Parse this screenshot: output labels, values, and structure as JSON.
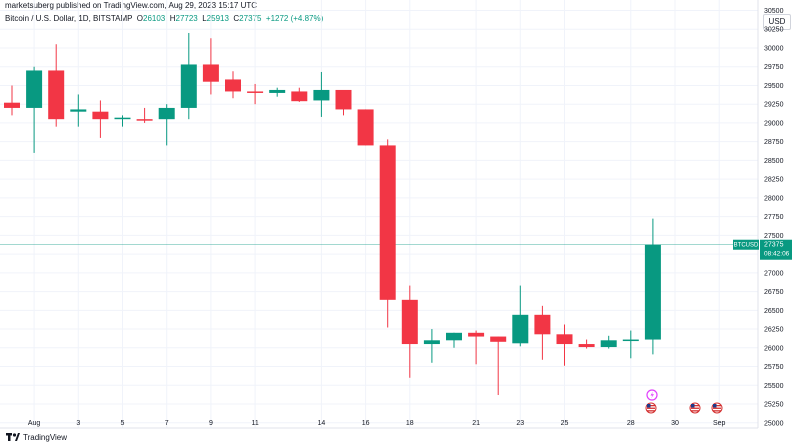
{
  "header": {
    "published": "marketsuberg published on TradingView.com, Aug 29, 2023 15:17 UTC"
  },
  "symbol": {
    "name": "Bitcoin / U.S. Dollar, 1D, BITSTAMP",
    "o_key": "O",
    "o": "26103",
    "h_key": "H",
    "h": "27723",
    "l_key": "L",
    "l": "25913",
    "c_key": "C",
    "c": "27375",
    "change": "+1272 (+4.87%)"
  },
  "currency": "USD",
  "price_tag": {
    "ticker": "BTCUSD",
    "price": "27375",
    "countdown": "08:42:06"
  },
  "footer": {
    "brand": "TradingView"
  },
  "colors": {
    "up": "#089981",
    "down": "#f23645",
    "grid": "#f0f3fa",
    "axis_text": "#131722"
  },
  "chart_data": {
    "type": "candlestick",
    "y_ticks": [
      25000,
      25250,
      25500,
      25750,
      26000,
      26250,
      26500,
      26750,
      27000,
      27250,
      27500,
      27750,
      28000,
      28250,
      28500,
      28750,
      29000,
      29250,
      29500,
      29750,
      30000,
      30250,
      30500
    ],
    "x_ticks": [
      {
        "label": "Aug",
        "index": 1
      },
      {
        "label": "3",
        "index": 3
      },
      {
        "label": "5",
        "index": 5
      },
      {
        "label": "7",
        "index": 7
      },
      {
        "label": "9",
        "index": 9
      },
      {
        "label": "11",
        "index": 11
      },
      {
        "label": "14",
        "index": 14
      },
      {
        "label": "16",
        "index": 16
      },
      {
        "label": "18",
        "index": 18
      },
      {
        "label": "21",
        "index": 21
      },
      {
        "label": "23",
        "index": 23
      },
      {
        "label": "25",
        "index": 25
      },
      {
        "label": "28",
        "index": 28
      },
      {
        "label": "30",
        "index": 30
      },
      {
        "label": "Sep",
        "index": 32
      }
    ],
    "ylim": [
      24930,
      30640
    ],
    "candles": [
      {
        "o": 29270,
        "h": 29500,
        "l": 29100,
        "c": 29200
      },
      {
        "o": 29200,
        "h": 29750,
        "l": 28600,
        "c": 29700
      },
      {
        "o": 29700,
        "h": 30050,
        "l": 28950,
        "c": 29050
      },
      {
        "o": 29150,
        "h": 29380,
        "l": 28950,
        "c": 29180
      },
      {
        "o": 29150,
        "h": 29300,
        "l": 28800,
        "c": 29050
      },
      {
        "o": 29050,
        "h": 29100,
        "l": 28950,
        "c": 29070
      },
      {
        "o": 29050,
        "h": 29200,
        "l": 29000,
        "c": 29030
      },
      {
        "o": 29050,
        "h": 29250,
        "l": 28700,
        "c": 29200
      },
      {
        "o": 29200,
        "h": 30200,
        "l": 29050,
        "c": 29780
      },
      {
        "o": 29780,
        "h": 30130,
        "l": 29380,
        "c": 29550
      },
      {
        "o": 29580,
        "h": 29690,
        "l": 29330,
        "c": 29420
      },
      {
        "o": 29420,
        "h": 29520,
        "l": 29250,
        "c": 29400
      },
      {
        "o": 29400,
        "h": 29470,
        "l": 29350,
        "c": 29440
      },
      {
        "o": 29420,
        "h": 29470,
        "l": 29280,
        "c": 29290
      },
      {
        "o": 29300,
        "h": 29680,
        "l": 29080,
        "c": 29440
      },
      {
        "o": 29440,
        "h": 29440,
        "l": 29100,
        "c": 29180
      },
      {
        "o": 29180,
        "h": 29180,
        "l": 28700,
        "c": 28700
      },
      {
        "o": 28700,
        "h": 28780,
        "l": 26270,
        "c": 26640
      },
      {
        "o": 26640,
        "h": 26830,
        "l": 25600,
        "c": 26050
      },
      {
        "o": 26050,
        "h": 26250,
        "l": 25800,
        "c": 26100
      },
      {
        "o": 26100,
        "h": 26200,
        "l": 26000,
        "c": 26200
      },
      {
        "o": 26200,
        "h": 26230,
        "l": 25780,
        "c": 26150
      },
      {
        "o": 26150,
        "h": 26150,
        "l": 25370,
        "c": 26080
      },
      {
        "o": 26060,
        "h": 26830,
        "l": 26020,
        "c": 26440
      },
      {
        "o": 26440,
        "h": 26560,
        "l": 25840,
        "c": 26180
      },
      {
        "o": 26180,
        "h": 26310,
        "l": 25760,
        "c": 26050
      },
      {
        "o": 26050,
        "h": 26110,
        "l": 25990,
        "c": 26010
      },
      {
        "o": 26010,
        "h": 26160,
        "l": 25990,
        "c": 26100
      },
      {
        "o": 26100,
        "h": 26230,
        "l": 25860,
        "c": 26110
      },
      {
        "o": 26110,
        "h": 27723,
        "l": 25913,
        "c": 27375
      }
    ],
    "current_price": 27375
  }
}
